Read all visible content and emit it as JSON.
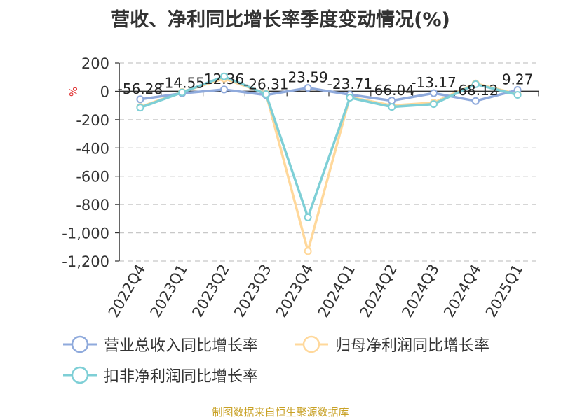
{
  "title": "营收、净利同比增长率季度变动情况(%)",
  "source": "制图数据来自恒生聚源数据库",
  "legend": {
    "items": [
      {
        "label": "营业总收入同比增长率",
        "color": "#8faadc"
      },
      {
        "label": "归母净利润同比增长率",
        "color": "#ffd89b"
      },
      {
        "label": "扣非净利润同比增长率",
        "color": "#7ecfd6"
      }
    ]
  },
  "chart_data": {
    "type": "line",
    "title": "营收、净利同比增长率季度变动情况(%)",
    "ylabel": "%",
    "xlabel": "",
    "ylim": [
      -1200,
      200
    ],
    "yticks": [
      200,
      0,
      -200,
      -400,
      -600,
      -800,
      -1000,
      -1200
    ],
    "ytick_labels": [
      "200",
      "0",
      "-200",
      "-400",
      "-600",
      "-800",
      "-1,000",
      "-1,200"
    ],
    "categories": [
      "2022Q4",
      "2023Q1",
      "2023Q2",
      "2023Q3",
      "2023Q4",
      "2024Q1",
      "2024Q2",
      "2024Q3",
      "2024Q4",
      "2025Q1"
    ],
    "grid": true,
    "legend_position": "bottom",
    "series": [
      {
        "name": "营业总收入同比增长率",
        "color": "#8faadc",
        "values": [
          -56.28,
          -14.55,
          12.36,
          -26.31,
          23.59,
          -23.71,
          -66.04,
          -13.17,
          -68.12,
          9.27
        ],
        "labels": [
          "-56.28",
          "-14.55",
          "12.36",
          "-26.31",
          "23.59",
          "-23.71",
          "-66.04",
          "-13.17",
          "-68.12",
          "9.27"
        ]
      },
      {
        "name": "归母净利润同比增长率",
        "color": "#ffd89b",
        "values": [
          -110,
          -5,
          90,
          -15,
          -1130,
          -40,
          -100,
          -80,
          55,
          -20
        ]
      },
      {
        "name": "扣非净利润同比增长率",
        "color": "#7ecfd6",
        "values": [
          -115,
          -8,
          105,
          -20,
          -890,
          -45,
          -110,
          -90,
          50,
          -25
        ]
      }
    ]
  }
}
